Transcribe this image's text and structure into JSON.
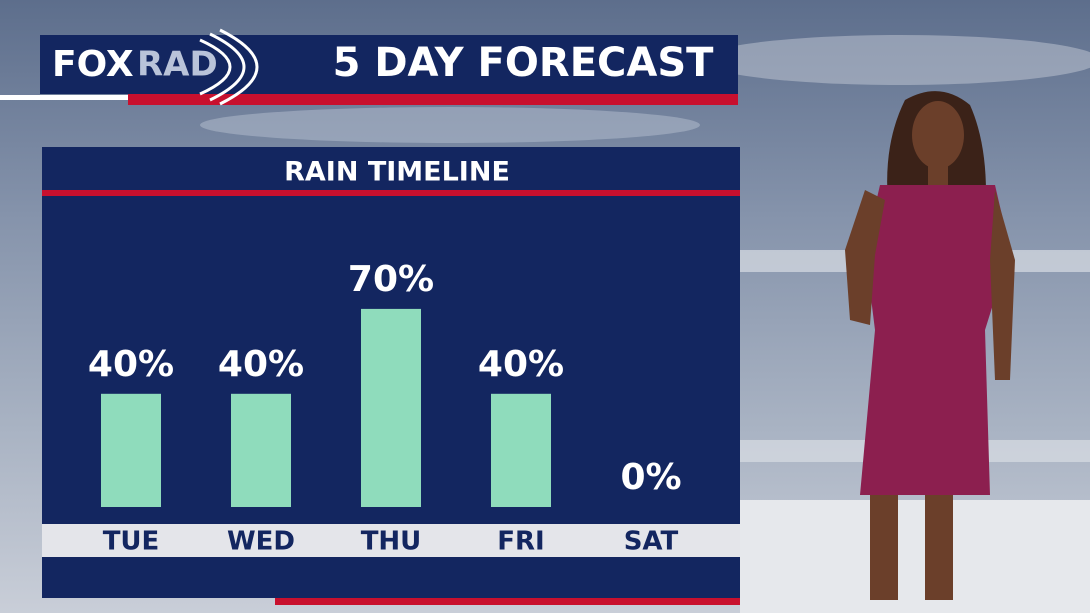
{
  "header": {
    "logo": [
      "FOX",
      "RAD"
    ],
    "title": "5 DAY FORECAST"
  },
  "chart_data": {
    "type": "bar",
    "title": "RAIN TIMELINE",
    "categories": [
      "TUE",
      "WED",
      "THU",
      "FRI",
      "SAT"
    ],
    "values": [
      40,
      40,
      70,
      40,
      0
    ],
    "value_labels": [
      "40%",
      "40%",
      "70%",
      "40%",
      "0%"
    ],
    "color": "#8fdcbc"
  }
}
